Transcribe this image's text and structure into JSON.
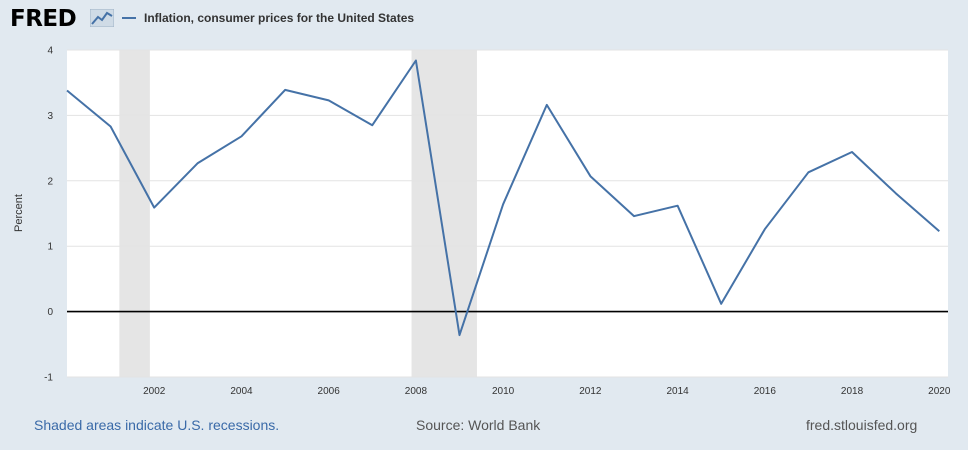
{
  "header": {
    "logo_text": "FRED",
    "legend_label": "Inflation, consumer prices for the United States"
  },
  "colors": {
    "series": "#4572a7",
    "recession": "#e5e5e5",
    "background": "#e1e9f0",
    "plot": "#ffffff"
  },
  "chart_data": {
    "type": "line",
    "title": "",
    "xlabel": "",
    "ylabel": "Percent",
    "xlim": [
      2000,
      2020.2
    ],
    "ylim": [
      -1,
      4
    ],
    "yticks": [
      -1,
      0,
      1,
      2,
      3,
      4
    ],
    "xticks": [
      2002,
      2004,
      2006,
      2008,
      2010,
      2012,
      2014,
      2016,
      2018,
      2020
    ],
    "grid": true,
    "legend": "top-left",
    "recessions": [
      [
        2001.2,
        2001.9
      ],
      [
        2007.9,
        2009.4
      ]
    ],
    "series": [
      {
        "name": "Inflation, consumer prices for the United States",
        "x": [
          2000,
          2001,
          2002,
          2003,
          2004,
          2005,
          2006,
          2007,
          2008,
          2009,
          2010,
          2011,
          2012,
          2013,
          2014,
          2015,
          2016,
          2017,
          2018,
          2019,
          2020
        ],
        "values": [
          3.38,
          2.83,
          1.59,
          2.27,
          2.68,
          3.39,
          3.23,
          2.85,
          3.84,
          -0.36,
          1.64,
          3.16,
          2.07,
          1.46,
          1.62,
          0.12,
          1.26,
          2.13,
          2.44,
          1.81,
          1.23
        ]
      }
    ]
  },
  "footer": {
    "note": "Shaded areas indicate U.S. recessions.",
    "source": "Source: World Bank",
    "url": "fred.stlouisfed.org"
  }
}
